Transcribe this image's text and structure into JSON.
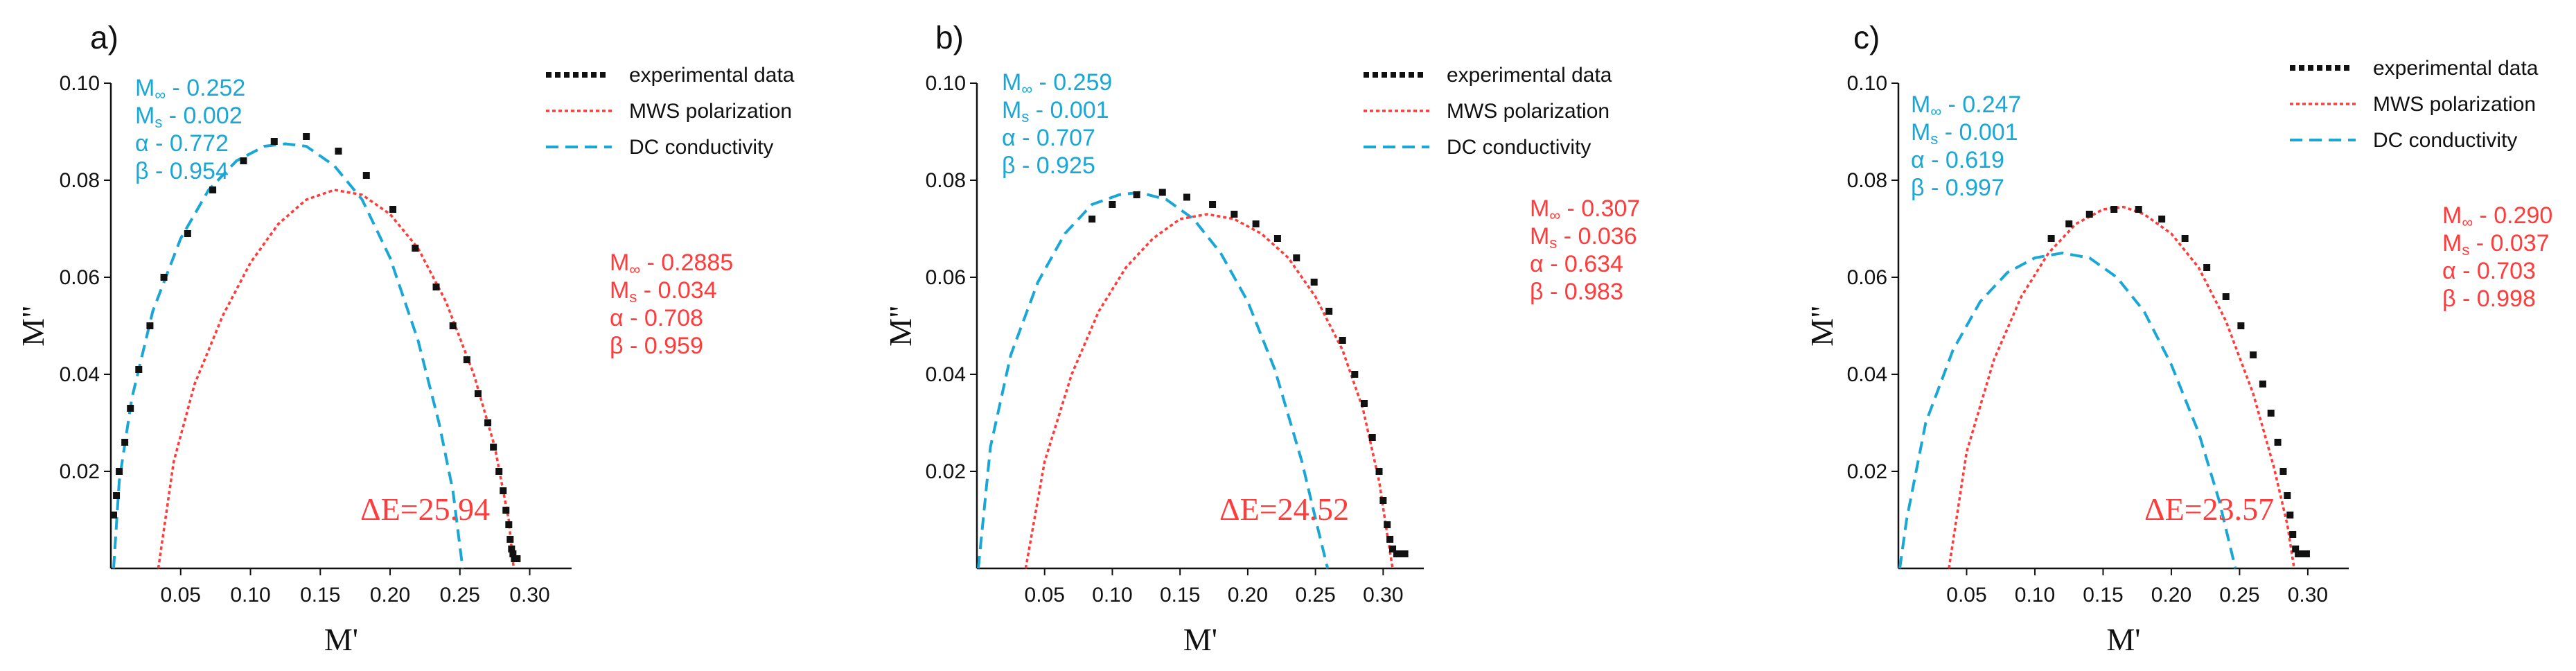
{
  "colors": {
    "experimental": "#111111",
    "mws": "#ff3b3b",
    "dc": "#1aa7d6",
    "axis": "#111111"
  },
  "chart_data": [
    {
      "type": "scatter",
      "panel_label": "a)",
      "xlabel": "M'",
      "ylabel": "M\"",
      "xlim": [
        0.0,
        0.33
      ],
      "ylim": [
        0.0,
        0.1
      ],
      "xticks": [
        "0.05",
        "0.10",
        "0.15",
        "0.20",
        "0.25",
        "0.30"
      ],
      "yticks": [
        "0.02",
        "0.04",
        "0.06",
        "0.08",
        "0.10"
      ],
      "legend": [
        "experimental data",
        "MWS polarization",
        "DC conductivity"
      ],
      "dc_params": {
        "m_inf": "0.252",
        "m_s": "0.002",
        "alpha": "0.772",
        "beta": "0.954"
      },
      "mws_params": {
        "m_inf": "0.2885",
        "m_s": "0.034",
        "alpha": "0.708",
        "beta": "0.959"
      },
      "delta_e": "ΔE=25.94",
      "experimental": [
        [
          0.002,
          0.011
        ],
        [
          0.004,
          0.015
        ],
        [
          0.006,
          0.02
        ],
        [
          0.01,
          0.026
        ],
        [
          0.014,
          0.033
        ],
        [
          0.02,
          0.041
        ],
        [
          0.028,
          0.05
        ],
        [
          0.038,
          0.06
        ],
        [
          0.055,
          0.069
        ],
        [
          0.073,
          0.078
        ],
        [
          0.095,
          0.084
        ],
        [
          0.117,
          0.088
        ],
        [
          0.14,
          0.089
        ],
        [
          0.163,
          0.086
        ],
        [
          0.183,
          0.081
        ],
        [
          0.202,
          0.074
        ],
        [
          0.218,
          0.066
        ],
        [
          0.233,
          0.058
        ],
        [
          0.245,
          0.05
        ],
        [
          0.255,
          0.043
        ],
        [
          0.263,
          0.036
        ],
        [
          0.27,
          0.03
        ],
        [
          0.274,
          0.025
        ],
        [
          0.278,
          0.02
        ],
        [
          0.281,
          0.016
        ],
        [
          0.283,
          0.012
        ],
        [
          0.285,
          0.009
        ],
        [
          0.286,
          0.006
        ],
        [
          0.287,
          0.004
        ],
        [
          0.288,
          0.003
        ],
        [
          0.289,
          0.002
        ],
        [
          0.291,
          0.002
        ]
      ],
      "mws_curve": [
        [
          0.034,
          0.0
        ],
        [
          0.045,
          0.022
        ],
        [
          0.06,
          0.038
        ],
        [
          0.08,
          0.052
        ],
        [
          0.1,
          0.063
        ],
        [
          0.12,
          0.071
        ],
        [
          0.14,
          0.076
        ],
        [
          0.16,
          0.078
        ],
        [
          0.18,
          0.077
        ],
        [
          0.2,
          0.073
        ],
        [
          0.22,
          0.066
        ],
        [
          0.24,
          0.055
        ],
        [
          0.26,
          0.04
        ],
        [
          0.275,
          0.025
        ],
        [
          0.285,
          0.01
        ],
        [
          0.2885,
          0.0
        ]
      ],
      "dc_curve": [
        [
          0.002,
          0.0
        ],
        [
          0.006,
          0.018
        ],
        [
          0.015,
          0.035
        ],
        [
          0.03,
          0.053
        ],
        [
          0.05,
          0.068
        ],
        [
          0.07,
          0.078
        ],
        [
          0.09,
          0.084
        ],
        [
          0.11,
          0.087
        ],
        [
          0.125,
          0.0875
        ],
        [
          0.14,
          0.087
        ],
        [
          0.16,
          0.083
        ],
        [
          0.18,
          0.076
        ],
        [
          0.2,
          0.064
        ],
        [
          0.22,
          0.047
        ],
        [
          0.235,
          0.03
        ],
        [
          0.245,
          0.016
        ],
        [
          0.252,
          0.0
        ]
      ]
    },
    {
      "type": "scatter",
      "panel_label": "b)",
      "xlabel": "M'",
      "ylabel": "M\"",
      "xlim": [
        0.0,
        0.33
      ],
      "ylim": [
        0.0,
        0.1
      ],
      "xticks": [
        "0.05",
        "0.10",
        "0.15",
        "0.20",
        "0.25",
        "0.30"
      ],
      "yticks": [
        "0.02",
        "0.04",
        "0.06",
        "0.08",
        "0.10"
      ],
      "legend": [
        "experimental data",
        "MWS polarization",
        "DC conductivity"
      ],
      "dc_params": {
        "m_inf": "0.259",
        "m_s": "0.001",
        "alpha": "0.707",
        "beta": "0.925"
      },
      "mws_params": {
        "m_inf": "0.307",
        "m_s": "0.036",
        "alpha": "0.634",
        "beta": "0.983"
      },
      "delta_e": "ΔE=24.52",
      "experimental": [
        [
          0.085,
          0.072
        ],
        [
          0.1,
          0.075
        ],
        [
          0.118,
          0.077
        ],
        [
          0.137,
          0.0775
        ],
        [
          0.155,
          0.0765
        ],
        [
          0.174,
          0.075
        ],
        [
          0.19,
          0.073
        ],
        [
          0.206,
          0.071
        ],
        [
          0.222,
          0.068
        ],
        [
          0.236,
          0.064
        ],
        [
          0.249,
          0.059
        ],
        [
          0.26,
          0.053
        ],
        [
          0.27,
          0.047
        ],
        [
          0.279,
          0.04
        ],
        [
          0.286,
          0.034
        ],
        [
          0.292,
          0.027
        ],
        [
          0.297,
          0.02
        ],
        [
          0.3,
          0.014
        ],
        [
          0.303,
          0.009
        ],
        [
          0.305,
          0.006
        ],
        [
          0.307,
          0.004
        ],
        [
          0.31,
          0.003
        ],
        [
          0.313,
          0.003
        ],
        [
          0.316,
          0.003
        ]
      ],
      "mws_curve": [
        [
          0.036,
          0.0
        ],
        [
          0.05,
          0.022
        ],
        [
          0.07,
          0.04
        ],
        [
          0.09,
          0.053
        ],
        [
          0.11,
          0.062
        ],
        [
          0.13,
          0.068
        ],
        [
          0.15,
          0.072
        ],
        [
          0.17,
          0.073
        ],
        [
          0.19,
          0.072
        ],
        [
          0.21,
          0.069
        ],
        [
          0.23,
          0.064
        ],
        [
          0.25,
          0.056
        ],
        [
          0.27,
          0.045
        ],
        [
          0.285,
          0.033
        ],
        [
          0.297,
          0.018
        ],
        [
          0.303,
          0.007
        ],
        [
          0.307,
          0.0
        ]
      ],
      "dc_curve": [
        [
          0.001,
          0.0
        ],
        [
          0.01,
          0.025
        ],
        [
          0.025,
          0.044
        ],
        [
          0.045,
          0.059
        ],
        [
          0.065,
          0.069
        ],
        [
          0.085,
          0.075
        ],
        [
          0.105,
          0.077
        ],
        [
          0.12,
          0.0775
        ],
        [
          0.14,
          0.076
        ],
        [
          0.16,
          0.072
        ],
        [
          0.18,
          0.065
        ],
        [
          0.2,
          0.055
        ],
        [
          0.22,
          0.041
        ],
        [
          0.24,
          0.022
        ],
        [
          0.252,
          0.008
        ],
        [
          0.259,
          0.0
        ]
      ]
    },
    {
      "type": "scatter",
      "panel_label": "c)",
      "xlabel": "M'",
      "ylabel": "M\"",
      "xlim": [
        0.0,
        0.33
      ],
      "ylim": [
        0.0,
        0.1
      ],
      "xticks": [
        "0.05",
        "0.10",
        "0.15",
        "0.20",
        "0.25",
        "0.30"
      ],
      "yticks": [
        "0.02",
        "0.04",
        "0.06",
        "0.08",
        "0.10"
      ],
      "legend": [
        "experimental data",
        "MWS polarization",
        "DC conductivity"
      ],
      "dc_params": {
        "m_inf": "0.247",
        "m_s": "0.001",
        "alpha": "0.619",
        "beta": "0.997"
      },
      "mws_params": {
        "m_inf": "0.290",
        "m_s": "0.037",
        "alpha": "0.703",
        "beta": "0.998"
      },
      "delta_e": "ΔE=23.57",
      "experimental": [
        [
          0.112,
          0.068
        ],
        [
          0.125,
          0.071
        ],
        [
          0.14,
          0.073
        ],
        [
          0.158,
          0.074
        ],
        [
          0.176,
          0.074
        ],
        [
          0.193,
          0.072
        ],
        [
          0.21,
          0.068
        ],
        [
          0.226,
          0.062
        ],
        [
          0.24,
          0.056
        ],
        [
          0.251,
          0.05
        ],
        [
          0.26,
          0.044
        ],
        [
          0.267,
          0.038
        ],
        [
          0.273,
          0.032
        ],
        [
          0.278,
          0.026
        ],
        [
          0.282,
          0.02
        ],
        [
          0.285,
          0.015
        ],
        [
          0.287,
          0.011
        ],
        [
          0.289,
          0.007
        ],
        [
          0.291,
          0.004
        ],
        [
          0.293,
          0.003
        ],
        [
          0.296,
          0.003
        ],
        [
          0.299,
          0.003
        ]
      ],
      "mws_curve": [
        [
          0.037,
          0.0
        ],
        [
          0.05,
          0.024
        ],
        [
          0.07,
          0.043
        ],
        [
          0.09,
          0.056
        ],
        [
          0.11,
          0.065
        ],
        [
          0.13,
          0.071
        ],
        [
          0.15,
          0.074
        ],
        [
          0.165,
          0.0745
        ],
        [
          0.18,
          0.073
        ],
        [
          0.2,
          0.069
        ],
        [
          0.22,
          0.062
        ],
        [
          0.24,
          0.051
        ],
        [
          0.26,
          0.036
        ],
        [
          0.275,
          0.021
        ],
        [
          0.285,
          0.009
        ],
        [
          0.29,
          0.0
        ]
      ],
      "dc_curve": [
        [
          0.001,
          0.0
        ],
        [
          0.006,
          0.01
        ],
        [
          0.02,
          0.03
        ],
        [
          0.04,
          0.045
        ],
        [
          0.06,
          0.055
        ],
        [
          0.08,
          0.061
        ],
        [
          0.1,
          0.064
        ],
        [
          0.12,
          0.065
        ],
        [
          0.14,
          0.064
        ],
        [
          0.16,
          0.06
        ],
        [
          0.18,
          0.053
        ],
        [
          0.2,
          0.042
        ],
        [
          0.22,
          0.028
        ],
        [
          0.235,
          0.014
        ],
        [
          0.247,
          0.0
        ]
      ]
    }
  ]
}
